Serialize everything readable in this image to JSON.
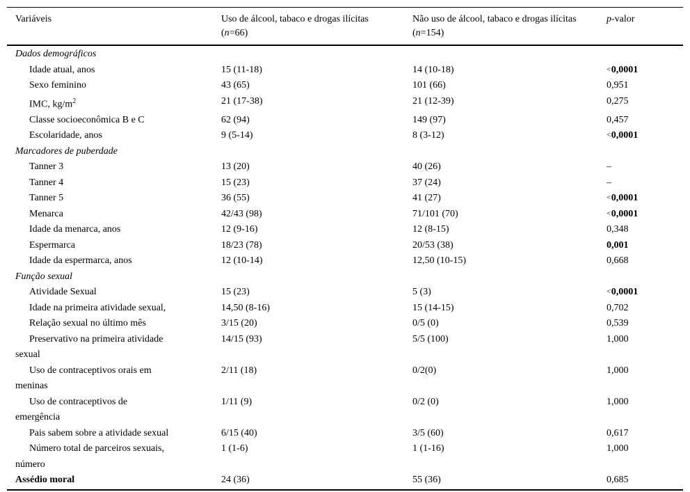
{
  "header": {
    "variables_label": "Variáveis",
    "group1_title": "Uso de álcool, tabaco e drogas ilícitas",
    "group1_n_open": "(",
    "group1_n_italic": "n",
    "group1_n_rest": "=66)",
    "group2_title": "Não uso de álcool, tabaco e drogas ilícitas",
    "group2_n_open": "(",
    "group2_n_italic": "n",
    "group2_n_rest": "=154)",
    "p_italic": "p",
    "p_rest": "-valor"
  },
  "rows": [
    {
      "type": "section",
      "label": "Dados demográficos"
    },
    {
      "type": "item",
      "label": "Idade atual, anos",
      "v1": "15 (11-18)",
      "v2": "14 (10-18)",
      "p": "0,0001",
      "p_lt": true,
      "p_bold": true
    },
    {
      "type": "item",
      "label": "Sexo feminino",
      "v1": "43 (65)",
      "v2": "101 (66)",
      "p": "0,951"
    },
    {
      "type": "item",
      "label": "IMC, kg/m",
      "sup": "2",
      "v1": "21 (17-38)",
      "v2": "21 (12-39)",
      "p": "0,275"
    },
    {
      "type": "item",
      "label": "Classe socioeconômica B e C",
      "v1": "62 (94)",
      "v2": "149 (97)",
      "p": "0,457"
    },
    {
      "type": "item",
      "label": "Escolaridade, anos",
      "v1": "9 (5-14)",
      "v2": "8 (3-12)",
      "p": "0,0001",
      "p_lt": true,
      "p_bold": true
    },
    {
      "type": "section",
      "label": "Marcadores de puberdade"
    },
    {
      "type": "item",
      "label": "Tanner 3",
      "v1": "13 (20)",
      "v2": "40 (26)",
      "p": "–"
    },
    {
      "type": "item",
      "label": "Tanner 4",
      "v1": "15 (23)",
      "v2": "37 (24)",
      "p": "–"
    },
    {
      "type": "item",
      "label": "Tanner 5",
      "v1": "36 (55)",
      "v2": "41 (27)",
      "p": "0,0001",
      "p_lt": true,
      "p_bold": true
    },
    {
      "type": "item",
      "label": "Menarca",
      "v1": "42/43 (98)",
      "v2": "71/101 (70)",
      "p": "0,0001",
      "p_lt": true,
      "p_bold": true
    },
    {
      "type": "item",
      "label": "Idade da menarca, anos",
      "v1": "12 (9-16)",
      "v2": "12 (8-15)",
      "p": "0,348"
    },
    {
      "type": "item",
      "label": "Espermarca",
      "v1": "18/23 (78)",
      "v2": "20/53 (38)",
      "p": "0,001",
      "p_bold": true
    },
    {
      "type": "item",
      "label": "Idade da espermarca, anos",
      "v1": "12 (10-14)",
      "v2": "12,50 (10-15)",
      "p": "0,668"
    },
    {
      "type": "section",
      "label": "Função sexual"
    },
    {
      "type": "item",
      "label": "Atividade Sexual",
      "v1": "15 (23)",
      "v2": "5 (3)",
      "p": "0,0001",
      "p_lt": true,
      "p_bold": true
    },
    {
      "type": "item",
      "label": "Idade na primeira atividade sexual,",
      "v1": "14,50 (8-16)",
      "v2": "15 (14-15)",
      "p": "0,702"
    },
    {
      "type": "item",
      "label": "Relação sexual no último mês",
      "v1": "3/15 (20)",
      "v2": "0/5 (0)",
      "p": "0,539"
    },
    {
      "type": "item",
      "label": "Preservativo na primeira atividade\nsexual",
      "v1": "14/15 (93)",
      "v2": "5/5 (100)",
      "p": "1,000"
    },
    {
      "type": "item",
      "label": "Uso de contraceptivos orais em\nmeninas",
      "v1": "2/11 (18)",
      "v2": "0/2(0)",
      "p": "1,000"
    },
    {
      "type": "item",
      "label": "Uso de contraceptivos de\nemergência",
      "v1": "1/11 (9)",
      "v2": "0/2 (0)",
      "p": "1,000"
    },
    {
      "type": "item",
      "label": "Pais sabem sobre a atividade sexual",
      "v1": "6/15 (40)",
      "v2": "3/5 (60)",
      "p": "0,617"
    },
    {
      "type": "item",
      "label": "Número total de parceiros sexuais,\nnúmero",
      "v1": "1 (1-6)",
      "v2": "1 (1-16)",
      "p": "1,000"
    },
    {
      "type": "bold",
      "label": "Assédio moral",
      "v1": "24 (36)",
      "v2": "55 (36)",
      "p": "0,685"
    }
  ]
}
